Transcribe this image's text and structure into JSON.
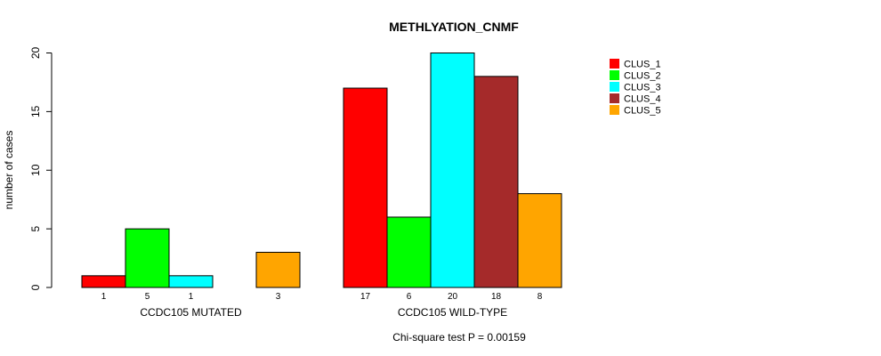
{
  "chart_data": {
    "type": "bar",
    "title": "METHLYATION_CNMF",
    "xlabel": "",
    "ylabel": "number of cases",
    "ylim": [
      0,
      20
    ],
    "yticks": [
      "0",
      "5",
      "10",
      "15",
      "20"
    ],
    "groups": [
      "CCDC105 MUTATED",
      "CCDC105 WILD-TYPE"
    ],
    "series": [
      {
        "name": "CLUS_1",
        "color": "#ff0000",
        "values": [
          1,
          17
        ],
        "labels": [
          "1",
          "17"
        ]
      },
      {
        "name": "CLUS_2",
        "color": "#00ff00",
        "values": [
          5,
          6
        ],
        "labels": [
          "5",
          "6"
        ]
      },
      {
        "name": "CLUS_3",
        "color": "#00ffff",
        "values": [
          1,
          20
        ],
        "labels": [
          "1",
          "20"
        ]
      },
      {
        "name": "CLUS_4",
        "color": "#a52a2a",
        "values": [
          0,
          18
        ],
        "labels": [
          "",
          "18"
        ]
      },
      {
        "name": "CLUS_5",
        "color": "#ffa500",
        "values": [
          3,
          8
        ],
        "labels": [
          "3",
          "8"
        ]
      }
    ],
    "legend_position": "top-right",
    "grid": false,
    "footnote": "Chi-square test P = 0.00159"
  }
}
